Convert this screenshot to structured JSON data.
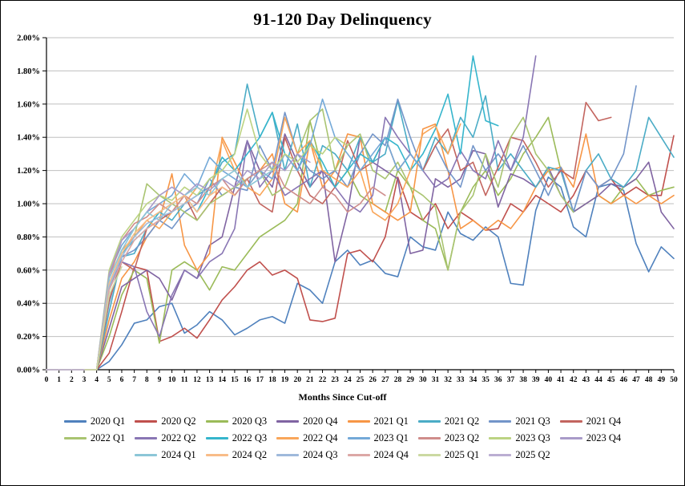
{
  "chart_data": {
    "type": "line",
    "title": "91-120 Day Delinquency",
    "xlabel": "Months  Since Cut-off",
    "x_max": 50,
    "ylim": [
      0,
      2.0
    ],
    "grid": true,
    "legend_position": "bottom",
    "legend_rows": [
      8,
      8,
      6
    ],
    "y_tick_labels": [
      "0.00%",
      "0.20%",
      "0.40%",
      "0.60%",
      "0.80%",
      "1.00%",
      "1.20%",
      "1.40%",
      "1.60%",
      "1.80%",
      "2.00%"
    ],
    "x_tick_labels": [
      "0",
      "1",
      "2",
      "3",
      "4",
      "5",
      "6",
      "7",
      "8",
      "9",
      "10",
      "11",
      "12",
      "13",
      "14",
      "15",
      "16",
      "17",
      "18",
      "19",
      "20",
      "21",
      "22",
      "23",
      "24",
      "25",
      "26",
      "27",
      "28",
      "29",
      "30",
      "31",
      "32",
      "33",
      "34",
      "35",
      "36",
      "37",
      "38",
      "39",
      "40",
      "41",
      "42",
      "43",
      "44",
      "45",
      "46",
      "47",
      "48",
      "49",
      "50"
    ],
    "series": [
      {
        "label": "2020 Q1",
        "color": "#4F81BD",
        "values": [
          0,
          0,
          0,
          0,
          0,
          0.05,
          0.15,
          0.28,
          0.3,
          0.38,
          0.4,
          0.22,
          0.27,
          0.35,
          0.3,
          0.21,
          0.25,
          0.3,
          0.32,
          0.28,
          0.52,
          0.48,
          0.4,
          0.65,
          0.72,
          0.63,
          0.66,
          0.58,
          0.56,
          0.8,
          0.74,
          0.72,
          0.95,
          0.82,
          0.78,
          0.86,
          0.8,
          0.52,
          0.51,
          0.96,
          1.16,
          1.1,
          0.86,
          0.8,
          1.1,
          1.12,
          1.08,
          0.76,
          0.59,
          0.74,
          0.67
        ]
      },
      {
        "label": "2020 Q2",
        "color": "#C0504D",
        "values": [
          0,
          0,
          0,
          0,
          0,
          0.1,
          0.35,
          0.62,
          0.6,
          0.17,
          0.2,
          0.25,
          0.19,
          0.3,
          0.42,
          0.5,
          0.6,
          0.65,
          0.57,
          0.6,
          0.55,
          0.3,
          0.29,
          0.31,
          0.7,
          0.72,
          0.65,
          0.8,
          1.16,
          0.95,
          0.9,
          1.0,
          0.85,
          0.95,
          0.9,
          0.84,
          0.85,
          1.0,
          0.95,
          1.05,
          1.0,
          0.95,
          1.05,
          1.2,
          1.1,
          1.15,
          1.05,
          1.1,
          1.05,
          1.05,
          1.41
        ]
      },
      {
        "label": "2020 Q3",
        "color": "#9BBB59",
        "values": [
          0,
          0,
          0,
          0,
          0,
          0.2,
          0.45,
          0.6,
          0.55,
          0.16,
          0.6,
          0.65,
          0.6,
          0.48,
          0.62,
          0.6,
          0.7,
          0.8,
          0.85,
          0.9,
          1.0,
          1.5,
          1.2,
          1.1,
          1.2,
          1.05,
          1.0,
          0.95,
          1.2,
          1.1,
          0.9,
          0.85,
          0.6,
          0.95,
          1.1,
          1.2,
          1.05,
          1.15,
          1.3,
          1.4,
          1.52,
          1.2,
          0.95,
          1.0,
          1.05,
          1.0,
          1.1,
          1.15,
          1.05,
          1.08,
          1.1
        ]
      },
      {
        "label": "2020 Q4",
        "color": "#8064A2",
        "values": [
          0,
          0,
          0,
          0,
          0,
          0.25,
          0.5,
          0.55,
          0.6,
          0.55,
          0.42,
          0.6,
          0.55,
          0.75,
          0.8,
          1.1,
          1.38,
          1.2,
          1.1,
          1.42,
          1.25,
          1.1,
          1.2,
          0.65,
          0.95,
          1.4,
          1.25,
          1.2,
          1.15,
          0.7,
          0.72,
          1.15,
          1.1,
          1.15,
          1.32,
          1.3,
          0.98,
          1.18,
          1.15,
          1.1,
          1.22,
          1.05,
          0.95,
          1.0,
          1.05,
          1.12,
          1.1,
          1.15,
          1.25,
          0.95,
          0.85
        ]
      },
      {
        "label": "2021 Q1",
        "color": "#F79646",
        "values": [
          0,
          0,
          0,
          0,
          0,
          0.3,
          0.55,
          0.65,
          0.8,
          0.9,
          1.18,
          0.75,
          0.6,
          0.7,
          1.4,
          1.25,
          1.1,
          1.2,
          1.3,
          1.0,
          0.95,
          1.38,
          1.1,
          1.2,
          1.42,
          1.4,
          1.0,
          0.95,
          0.9,
          0.95,
          1.45,
          1.48,
          1.2,
          0.85,
          0.9,
          0.84,
          0.9,
          0.85,
          0.95,
          1.1,
          1.2,
          1.22,
          1.1,
          1.42,
          1.05,
          1.0,
          1.05,
          1.0,
          1.05,
          1.0,
          1.05
        ]
      },
      {
        "label": "2021 Q2",
        "color": "#4BACC6",
        "values": [
          0,
          0,
          0,
          0,
          0,
          0.35,
          0.68,
          0.7,
          0.85,
          0.95,
          0.9,
          1.0,
          1.05,
          1.1,
          1.25,
          1.3,
          1.72,
          1.4,
          1.55,
          1.2,
          1.48,
          1.1,
          1.35,
          1.3,
          1.2,
          1.4,
          1.25,
          1.3,
          1.62,
          1.3,
          1.2,
          1.4,
          1.3,
          1.52,
          1.4,
          1.65,
          1.2,
          1.3,
          1.2,
          1.1,
          1.22,
          1.2,
          0.95,
          1.2,
          1.3,
          1.15,
          1.1,
          1.2,
          1.52,
          1.4,
          1.28
        ]
      },
      {
        "label": "2021 Q3",
        "color": "#7395C9",
        "values": [
          0,
          0,
          0,
          0,
          0,
          0.4,
          0.68,
          0.72,
          0.8,
          0.9,
          0.85,
          0.95,
          1.0,
          1.15,
          1.05,
          1.1,
          1.08,
          1.35,
          1.2,
          1.55,
          1.3,
          1.2,
          1.15,
          1.2,
          1.1,
          1.3,
          1.42,
          1.35,
          1.63,
          1.4,
          1.2,
          1.35,
          1.2,
          1.1,
          1.35,
          1.2,
          1.3,
          1.2,
          1.35,
          1.2,
          1.05,
          1.22,
          0.95,
          1.2,
          1.1,
          1.15,
          1.3,
          1.71
        ]
      },
      {
        "label": "2021 Q4",
        "color": "#C3655F",
        "values": [
          0,
          0,
          0,
          0,
          0,
          0.42,
          0.65,
          0.6,
          0.85,
          0.9,
          0.95,
          1.05,
          0.9,
          1.0,
          1.1,
          1.05,
          1.15,
          1.0,
          0.95,
          1.4,
          1.2,
          1.05,
          1.0,
          1.1,
          1.38,
          1.2,
          1.25,
          1.4,
          1.2,
          1.3,
          1.2,
          1.35,
          1.45,
          1.2,
          1.25,
          1.05,
          1.22,
          1.4,
          1.38,
          1.25,
          1.1,
          1.2,
          1.15,
          1.61,
          1.5,
          1.52
        ]
      },
      {
        "label": "2022 Q1",
        "color": "#A9C471",
        "values": [
          0,
          0,
          0,
          0,
          0,
          0.48,
          0.7,
          0.8,
          1.12,
          1.05,
          1.0,
          0.95,
          0.9,
          1.0,
          1.05,
          1.1,
          1.15,
          1.2,
          1.05,
          1.1,
          1.3,
          1.5,
          1.57,
          1.2,
          1.35,
          1.42,
          1.2,
          1.15,
          1.25,
          1.1,
          1.05,
          0.98,
          0.6,
          0.95,
          1.05,
          1.3,
          1.1,
          1.4,
          1.52,
          1.3,
          1.2,
          1.05,
          0.95
        ]
      },
      {
        "label": "2022 Q2",
        "color": "#8976B4",
        "values": [
          0,
          0,
          0,
          0,
          0,
          0.5,
          0.65,
          0.62,
          0.35,
          0.2,
          0.45,
          0.6,
          0.55,
          0.65,
          0.7,
          0.85,
          1.38,
          1.1,
          1.2,
          1.05,
          1.1,
          1.15,
          1.2,
          1.1,
          1.0,
          0.95,
          1.05,
          1.52,
          1.4,
          1.3,
          1.2,
          1.1,
          1.15,
          1.32,
          1.2,
          1.15,
          1.38,
          1.2,
          1.4,
          1.89
        ]
      },
      {
        "label": "2022 Q3",
        "color": "#35B5CC",
        "values": [
          0,
          0,
          0,
          0,
          0,
          0.52,
          0.7,
          0.78,
          0.85,
          0.95,
          1.0,
          1.05,
          0.95,
          1.1,
          1.28,
          1.2,
          1.3,
          1.4,
          1.55,
          1.3,
          1.2,
          1.38,
          1.25,
          1.1,
          1.2,
          1.3,
          1.25,
          1.4,
          1.35,
          1.2,
          1.3,
          1.45,
          1.66,
          1.3,
          1.89,
          1.5,
          1.47
        ]
      },
      {
        "label": "2022 Q4",
        "color": "#F9A65A",
        "values": [
          0,
          0,
          0,
          0,
          0,
          0.55,
          0.72,
          0.8,
          0.9,
          0.85,
          0.95,
          1.0,
          1.1,
          1.05,
          1.38,
          1.2,
          1.1,
          1.05,
          1.15,
          1.52,
          1.3,
          1.38,
          1.2,
          1.15,
          1.1,
          1.2,
          0.95,
          0.9,
          1.0,
          1.2,
          1.42,
          1.47,
          1.3,
          1.48
        ]
      },
      {
        "label": "2023 Q1",
        "color": "#74A9D8",
        "values": [
          0,
          0,
          0,
          0,
          0,
          0.58,
          0.75,
          0.85,
          0.95,
          1.0,
          1.05,
          1.18,
          1.1,
          1.28,
          1.2,
          1.15,
          1.1,
          1.2,
          1.15,
          1.3,
          1.2,
          1.35,
          1.63,
          1.4,
          1.3,
          1.2,
          1.3,
          1.4,
          1.2,
          1.3,
          1.2
        ]
      },
      {
        "label": "2023 Q2",
        "color": "#CF8D8B",
        "values": [
          0,
          0,
          0,
          0,
          0,
          0.55,
          0.78,
          0.88,
          0.92,
          1.0,
          0.95,
          1.05,
          1.0,
          1.1,
          1.15,
          1.05,
          1.15,
          1.2,
          1.25,
          1.1,
          1.05,
          1.0,
          1.1,
          1.05,
          0.95,
          1.0,
          1.1,
          1.05
        ]
      },
      {
        "label": "2023 Q3",
        "color": "#BCD383",
        "values": [
          0,
          0,
          0,
          0,
          0,
          0.6,
          0.8,
          0.9,
          1.0,
          1.05,
          1.02,
          1.1,
          1.05,
          1.15,
          1.2,
          1.3,
          1.57,
          1.3,
          1.2,
          1.3,
          1.25,
          1.35,
          1.3,
          1.4,
          1.35
        ]
      },
      {
        "label": "2023 Q4",
        "color": "#A99BC9",
        "values": [
          0,
          0,
          0,
          0,
          0,
          0.58,
          0.78,
          0.85,
          0.95,
          1.05,
          1.1,
          1.05,
          1.12,
          1.08,
          1.15,
          1.1,
          1.2,
          1.15,
          1.25,
          1.2,
          1.3,
          1.25
        ]
      },
      {
        "label": "2024 Q1",
        "color": "#8CC6D7",
        "values": [
          0,
          0,
          0,
          0,
          0,
          0.55,
          0.72,
          0.85,
          0.95,
          0.9,
          1.0,
          1.05,
          1.1,
          1.05,
          1.15,
          1.2,
          1.1,
          1.15,
          1.2
        ]
      },
      {
        "label": "2024 Q2",
        "color": "#F8BC88",
        "values": [
          0,
          0,
          0,
          0,
          0,
          0.52,
          0.7,
          0.82,
          0.9,
          0.95,
          1.0,
          1.05,
          0.95,
          1.05,
          1.1,
          1.05
        ]
      },
      {
        "label": "2024 Q3",
        "color": "#9FB9DB",
        "values": [
          0,
          0,
          0,
          0,
          0,
          0.5,
          0.68,
          0.8,
          0.88,
          0.92,
          0.95,
          1.0,
          1.05
        ]
      },
      {
        "label": "2024 Q4",
        "color": "#DCA8A6",
        "values": [
          0,
          0,
          0,
          0,
          0,
          0.48,
          0.65,
          0.78,
          0.85,
          0.9
        ]
      },
      {
        "label": "2025 Q1",
        "color": "#CBD9A2",
        "values": [
          0,
          0,
          0,
          0,
          0,
          0.45,
          0.62
        ]
      },
      {
        "label": "2025 Q2",
        "color": "#BBAED2",
        "values": [
          0,
          0,
          0,
          0
        ]
      }
    ]
  }
}
